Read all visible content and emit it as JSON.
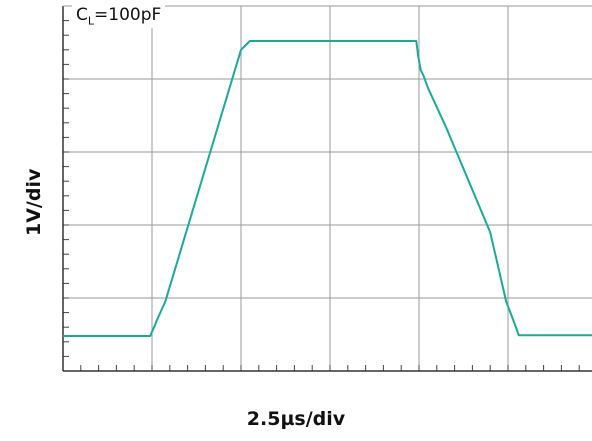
{
  "chart_data": {
    "type": "line",
    "title": "",
    "xlabel": "2.5µs/div",
    "ylabel": "1V/div",
    "annotation": {
      "main": "C",
      "subscript": "L",
      "rest": "=100pF"
    },
    "grid": true,
    "x_divisions": 6,
    "y_divisions": 5,
    "xlim": [
      0,
      6
    ],
    "ylim": [
      0,
      5
    ],
    "series": [
      {
        "color": "#1aaa9a",
        "x": [
          0,
          0.98,
          1.03,
          1.05,
          1.15,
          2.0,
          2.1,
          2.17,
          3.97,
          3.98,
          3.99,
          4.02,
          4.05,
          4.1,
          4.3,
          4.8,
          4.98,
          5.08,
          5.12,
          6.0
        ],
        "y": [
          0.48,
          0.48,
          0.62,
          0.68,
          0.95,
          4.4,
          4.52,
          4.52,
          4.52,
          4.42,
          4.32,
          4.12,
          4.05,
          3.88,
          3.35,
          1.9,
          0.95,
          0.63,
          0.49,
          0.49
        ]
      }
    ]
  }
}
